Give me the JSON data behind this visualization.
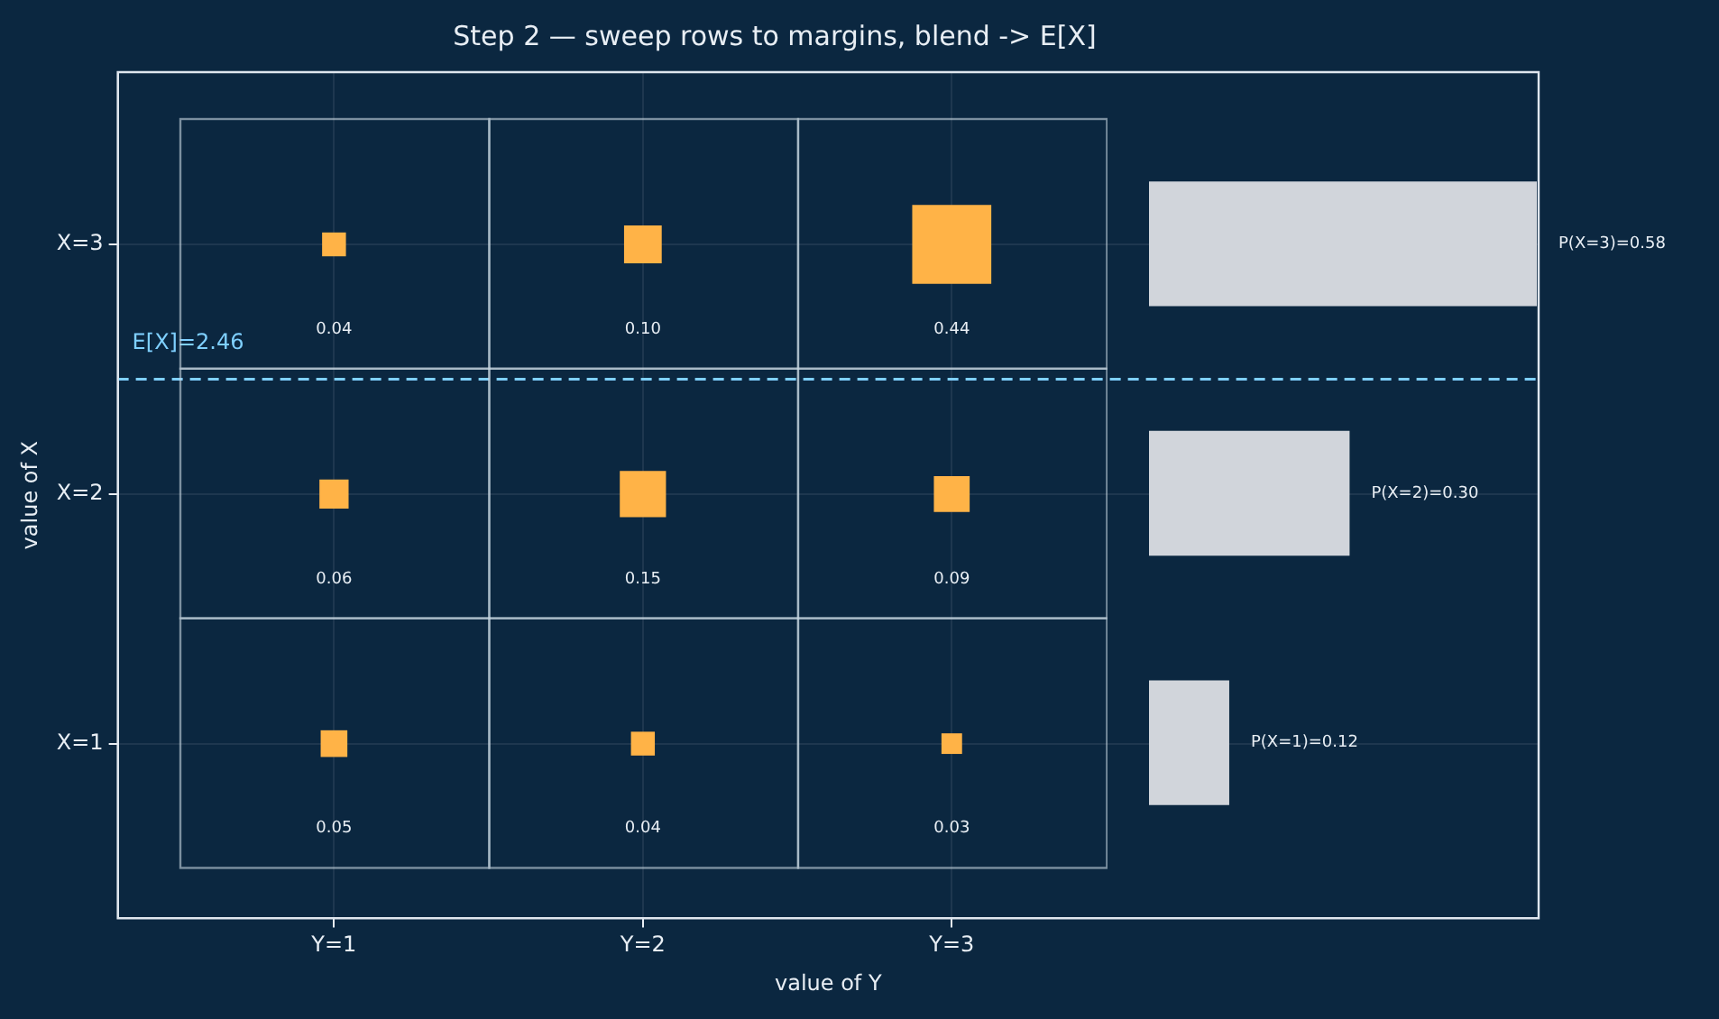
{
  "chart_data": [
    {
      "type": "bubble",
      "title": "Step 2 — sweep rows to margins, blend -> E[X]",
      "xlabel": "value of Y",
      "ylabel": "value of X",
      "series": [
        {
          "color": "#ffb347",
          "x": [
            1,
            2,
            3,
            1,
            2,
            3,
            1,
            2,
            3
          ],
          "values": [
            3,
            3,
            3,
            2,
            2,
            2,
            1,
            1,
            1
          ],
          "sizes": [
            0.091,
            0.227,
            1,
            0.136,
            0.341,
            0.205,
            0.114,
            0.091,
            0.068
          ]
        }
      ],
      "annotations": [
        "0.04",
        "0.10",
        "0.44",
        "0.06",
        "0.15",
        "0.09",
        "0.05",
        "0.04",
        "0.03"
      ],
      "marker": "square",
      "xlim": [
        0.3,
        4.9
      ],
      "xticks": [
        {
          "value": 1,
          "label": "Y=1"
        },
        {
          "value": 2,
          "label": "Y=2"
        },
        {
          "value": 3,
          "label": "Y=3"
        }
      ],
      "ylim": [
        0.3,
        3.69
      ],
      "yticks": [
        {
          "value": 1,
          "label": "X=1"
        },
        {
          "value": 2,
          "label": "X=2"
        },
        {
          "value": 3,
          "label": "X=3"
        }
      ],
      "ref_lines": [
        {
          "axis": "y",
          "value": 2.46,
          "label": "E[X]=2.46",
          "color": "#7fd0ff",
          "line_style": "dashed"
        }
      ],
      "grid": true
    },
    {
      "type": "bar",
      "orientation": "horizontal",
      "categories": [
        null,
        null,
        null
      ],
      "series": [
        {
          "color": "#d1d5db",
          "values": [
            0.58,
            0.3,
            0.12
          ],
          "value_labels": [
            "P(X=3)=0.58",
            "P(X=2)=0.30",
            "P(X=1)=0.12"
          ]
        }
      ],
      "xlim": [
        0,
        0.58
      ],
      "tick_labels": false
    }
  ]
}
